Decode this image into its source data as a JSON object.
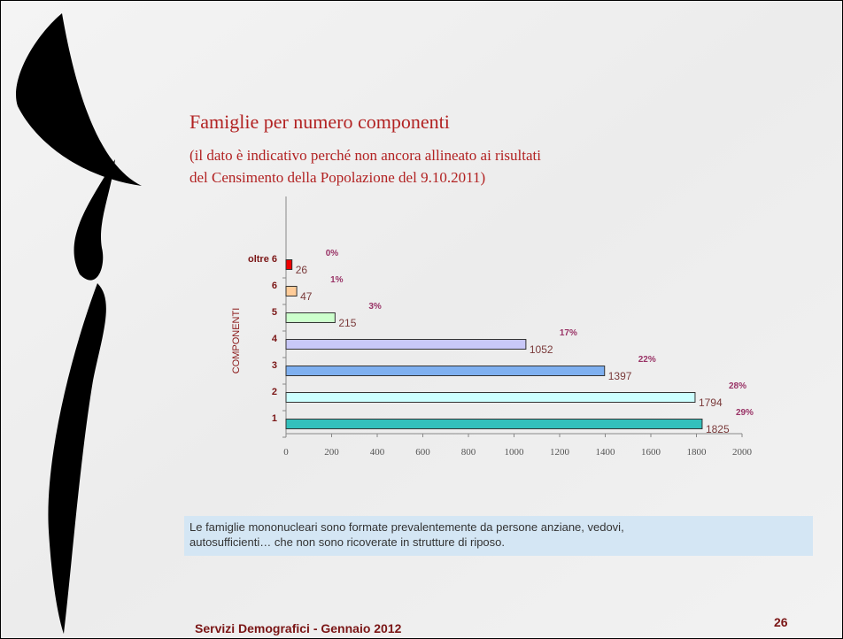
{
  "chart_data": {
    "type": "barh",
    "title": "Famiglie per numero componenti",
    "subtitle": [
      "(il dato è indicativo perché non ancora allineato ai risultati",
      "del Censimento della Popolazione del 9.10.2011)"
    ],
    "ylabel": "COMPONENTI",
    "categories": [
      "1",
      "2",
      "3",
      "4",
      "5",
      "6",
      "oltre 6"
    ],
    "values": [
      1825,
      1794,
      1397,
      1052,
      215,
      47,
      26
    ],
    "colors": [
      "#33c0bc",
      "#ccffff",
      "#7fb0f0",
      "#c8c8f8",
      "#ccffcc",
      "#ffcc99",
      "#ee0000"
    ],
    "shares": [
      {
        "value": 29,
        "label": "29%"
      },
      {
        "value": 28,
        "label": "28%"
      },
      {
        "value": 22,
        "label": "22%"
      },
      {
        "value": 17,
        "label": "17%"
      },
      {
        "value": 3,
        "label": "3%"
      },
      {
        "value": 1,
        "label": "1%"
      },
      {
        "value": 0,
        "label": "0%"
      }
    ],
    "xlim": [
      0,
      2000
    ],
    "xticks": [
      0,
      200,
      400,
      600,
      800,
      1000,
      1200,
      1400,
      1600,
      1800,
      2000
    ]
  },
  "note": [
    "Le famiglie mononucleari sono formate prevalentemente da persone anziane, vedovi,",
    "autosufficienti… che non sono ricoverate in strutture di riposo."
  ],
  "footer": "Servizi Demografici - Gennaio 2012",
  "page_number": "26"
}
